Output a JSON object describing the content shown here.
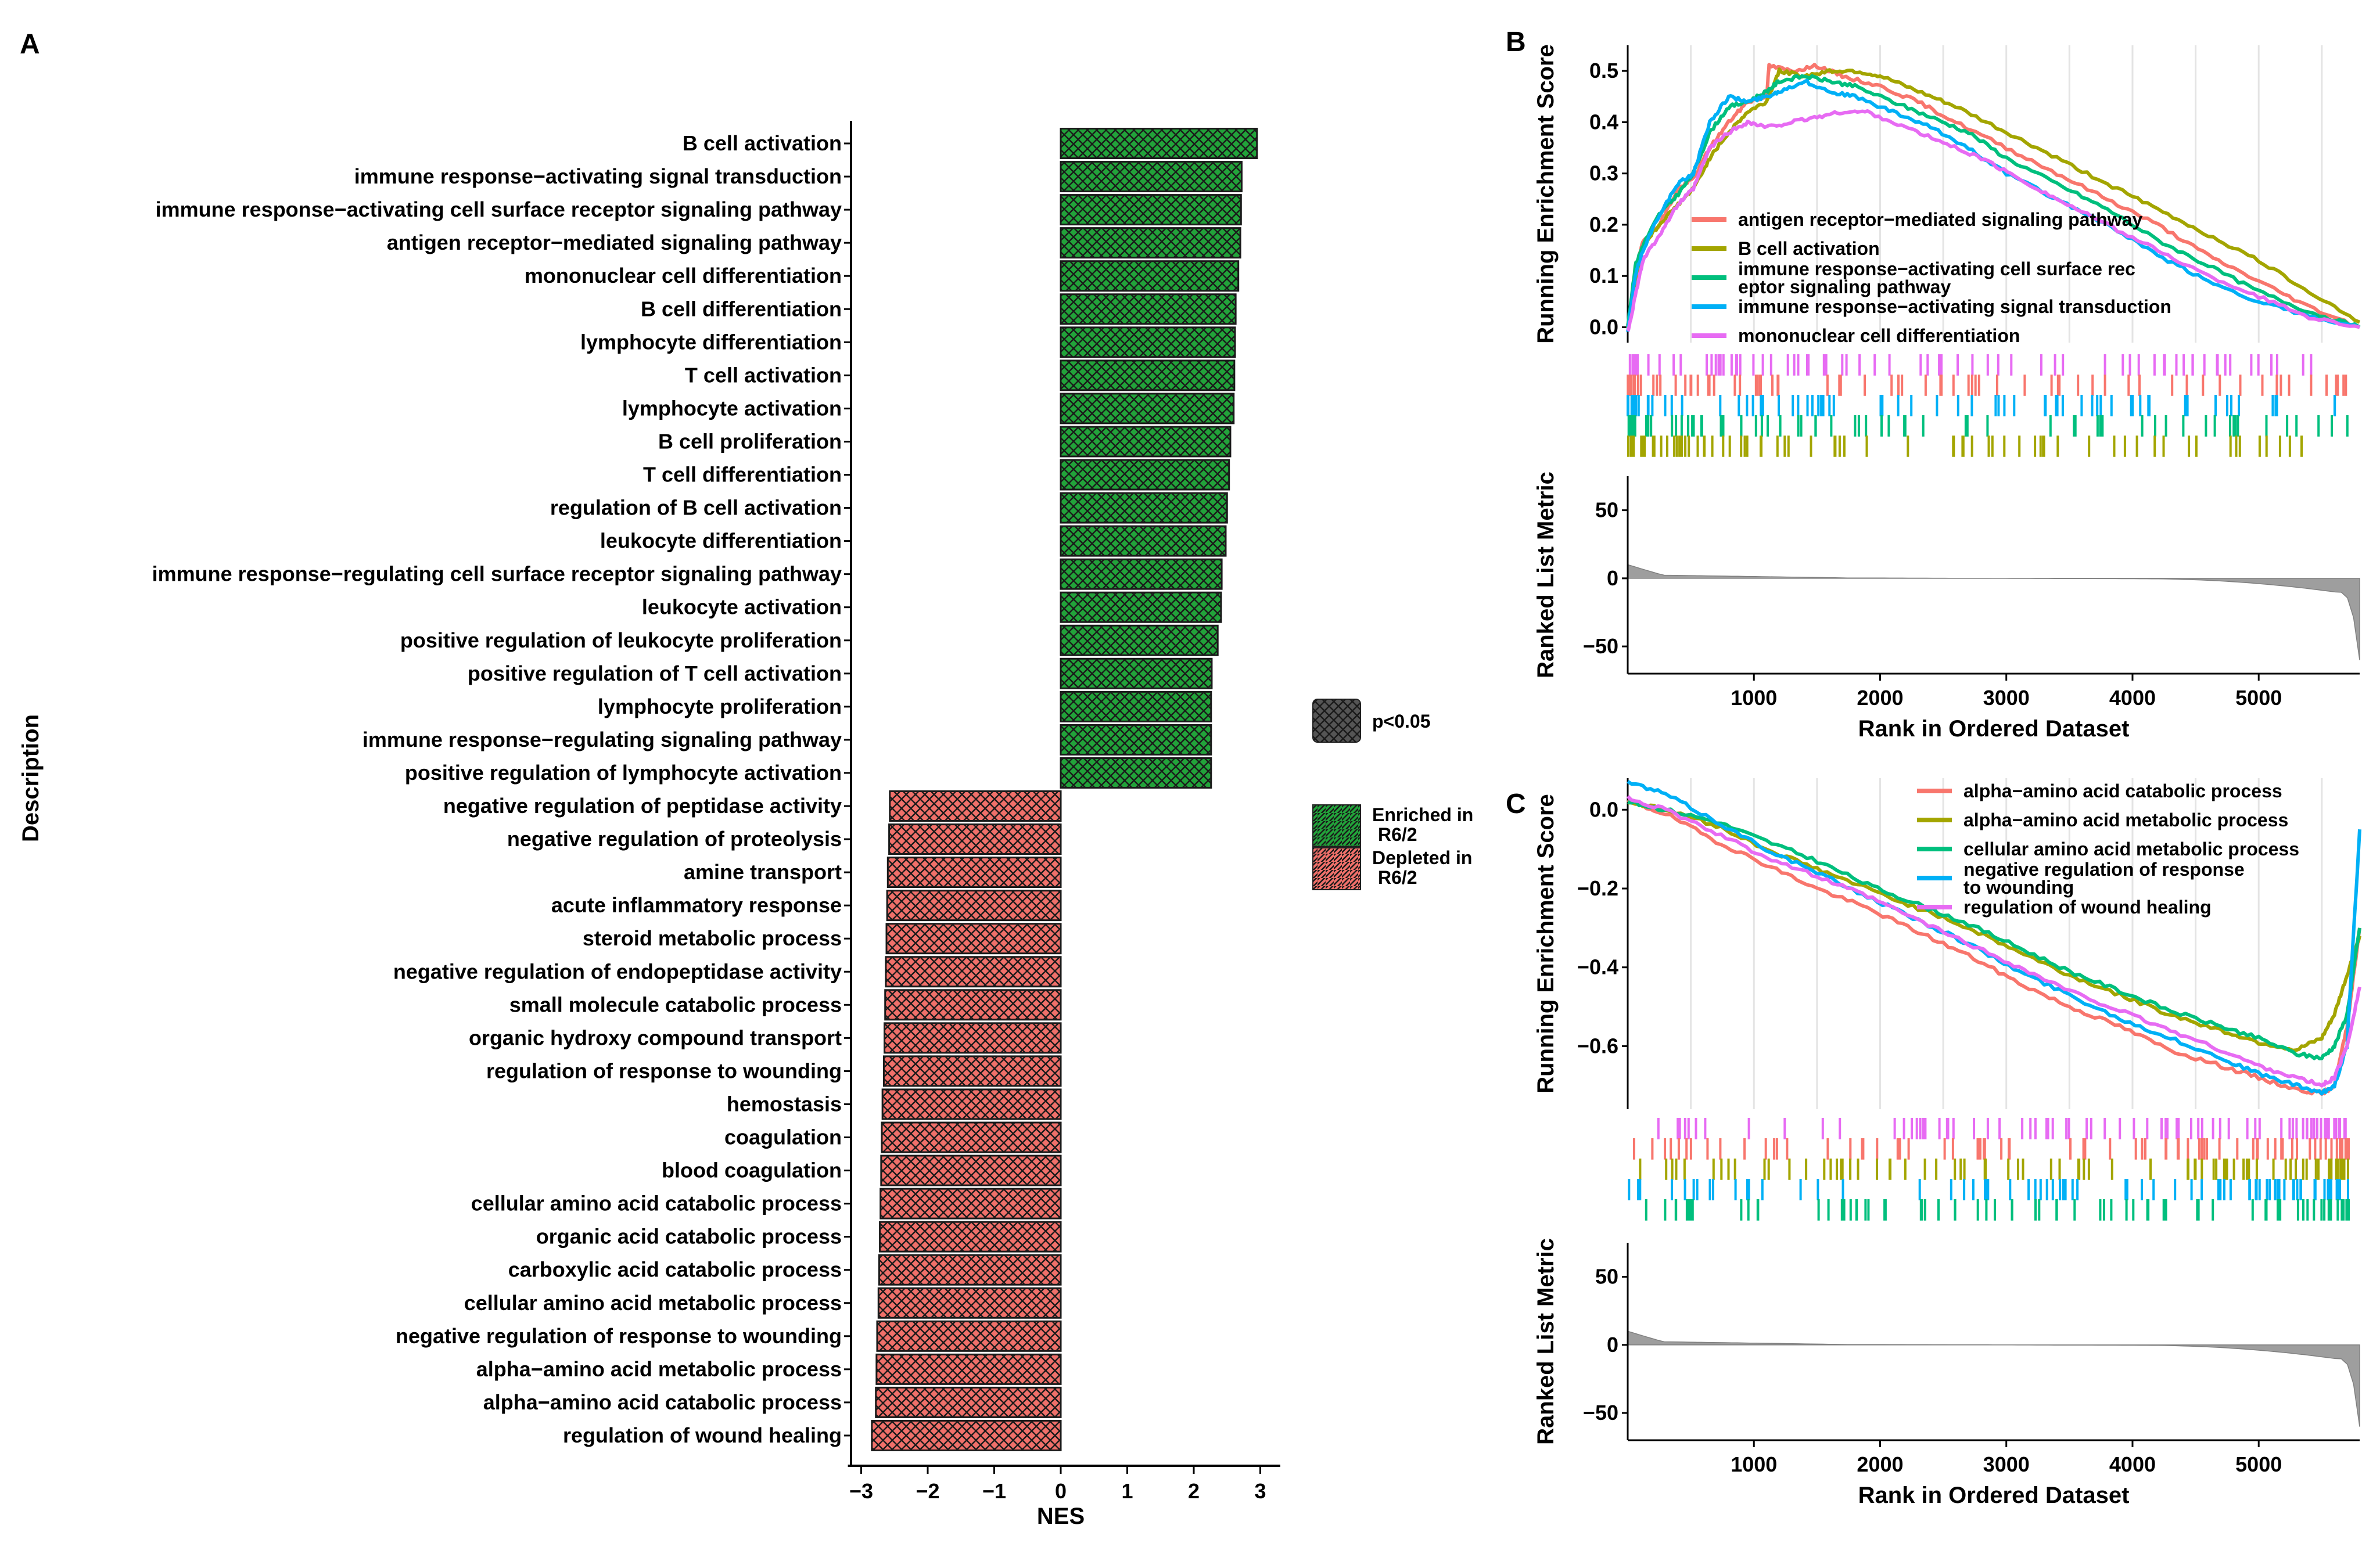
{
  "panels": {
    "a": "A",
    "b": "B",
    "c": "C"
  },
  "chart_data": [
    {
      "id": "A",
      "type": "bar",
      "orientation": "horizontal",
      "xlabel": "NES",
      "ylabel": "Description",
      "xlim": [
        -3.2,
        3.3
      ],
      "xticks": [
        "−3",
        "−2",
        "−1",
        "0",
        "1",
        "2",
        "3"
      ],
      "xtick_values": [
        -3,
        -2,
        -1,
        0,
        1,
        2,
        3
      ],
      "categories": [
        "B cell activation",
        "immune response−activating signal transduction",
        "immune response−activating cell surface receptor signaling pathway",
        "antigen receptor−mediated signaling pathway",
        "mononuclear cell differentiation",
        "B cell differentiation",
        "lymphocyte differentiation",
        "T cell activation",
        "lymphocyte activation",
        "B cell proliferation",
        "T cell differentiation",
        "regulation of B cell activation",
        "leukocyte differentiation",
        "immune response−regulating cell surface receptor signaling pathway",
        "leukocyte activation",
        "positive regulation of leukocyte proliferation",
        "positive regulation of T cell activation",
        "lymphocyte proliferation",
        "immune response−regulating signaling pathway",
        "positive regulation of lymphocyte activation",
        "negative regulation of peptidase activity",
        "negative regulation of proteolysis",
        "amine transport",
        "acute inflammatory response",
        "steroid metabolic process",
        "negative regulation of endopeptidase activity",
        "small molecule catabolic process",
        "organic hydroxy compound transport",
        "regulation of response to wounding",
        "hemostasis",
        "coagulation",
        "blood coagulation",
        "cellular amino acid catabolic process",
        "organic acid catabolic process",
        "carboxylic acid catabolic process",
        "cellular amino acid metabolic process",
        "negative regulation of response to wounding",
        "alpha−amino acid metabolic process",
        "alpha−amino acid catabolic process",
        "regulation of wound healing"
      ],
      "values": [
        2.95,
        2.72,
        2.71,
        2.7,
        2.67,
        2.63,
        2.62,
        2.61,
        2.6,
        2.55,
        2.53,
        2.5,
        2.48,
        2.42,
        2.41,
        2.36,
        2.27,
        2.26,
        2.26,
        2.26,
        -2.57,
        -2.58,
        -2.6,
        -2.61,
        -2.62,
        -2.63,
        -2.64,
        -2.65,
        -2.66,
        -2.68,
        -2.69,
        -2.7,
        -2.71,
        -2.72,
        -2.73,
        -2.74,
        -2.76,
        -2.77,
        -2.78,
        -2.84
      ],
      "legend": {
        "pattern_label": "p<0.05",
        "items": [
          {
            "label": "Enriched in R6/2",
            "color": "#22a33a"
          },
          {
            "label": "Depleted in R6/2",
            "color": "#f0706a"
          }
        ]
      }
    },
    {
      "id": "B",
      "type": "line",
      "ylabel_top": "Running Enrichment Score",
      "ylabel_bottom": "Ranked List Metric",
      "xlabel": "Rank in Ordered Dataset",
      "xlim": [
        0,
        5800
      ],
      "xticks": [
        1000,
        2000,
        3000,
        4000,
        5000
      ],
      "ylim_top": [
        -0.03,
        0.55
      ],
      "yticks_top": [
        "0.0",
        "0.1",
        "0.2",
        "0.3",
        "0.4",
        "0.5"
      ],
      "ylim_bottom": [
        -70,
        75
      ],
      "yticks_bottom": [
        "50",
        "0",
        "−50"
      ],
      "series": [
        {
          "name": "antigen receptor−mediated signaling pathway",
          "color": "#f8766d",
          "x": [
            0,
            60,
            120,
            250,
            400,
            520,
            650,
            800,
            950,
            1100,
            1120,
            1300,
            1500,
            1700,
            2000,
            2300,
            2600,
            3000,
            3400,
            3800,
            4200,
            4600,
            5000,
            5400,
            5800
          ],
          "y": [
            0.0,
            0.1,
            0.17,
            0.2,
            0.27,
            0.29,
            0.35,
            0.4,
            0.44,
            0.45,
            0.51,
            0.5,
            0.51,
            0.49,
            0.47,
            0.44,
            0.4,
            0.35,
            0.3,
            0.25,
            0.2,
            0.14,
            0.09,
            0.04,
            0.0
          ]
        },
        {
          "name": "B cell activation",
          "color": "#a3a500",
          "x": [
            0,
            60,
            120,
            250,
            400,
            520,
            650,
            800,
            950,
            1100,
            1200,
            1400,
            1600,
            1800,
            2000,
            2300,
            2600,
            3000,
            3400,
            3800,
            4200,
            4600,
            5000,
            5400,
            5800
          ],
          "y": [
            0.0,
            0.09,
            0.16,
            0.2,
            0.24,
            0.27,
            0.33,
            0.38,
            0.42,
            0.44,
            0.5,
            0.49,
            0.5,
            0.5,
            0.49,
            0.46,
            0.43,
            0.38,
            0.33,
            0.28,
            0.23,
            0.18,
            0.13,
            0.07,
            0.01
          ]
        },
        {
          "name": "immune response−activating cell surface receptor signaling pathway",
          "color": "#00bf7d",
          "x": [
            0,
            60,
            120,
            250,
            400,
            520,
            650,
            800,
            950,
            1100,
            1200,
            1400,
            1600,
            1800,
            2100,
            2400,
            2700,
            3000,
            3400,
            3800,
            4200,
            4600,
            5000,
            5400,
            5800
          ],
          "y": [
            0.0,
            0.12,
            0.16,
            0.22,
            0.26,
            0.3,
            0.38,
            0.43,
            0.44,
            0.46,
            0.48,
            0.49,
            0.48,
            0.47,
            0.44,
            0.41,
            0.38,
            0.33,
            0.28,
            0.23,
            0.17,
            0.12,
            0.07,
            0.03,
            0.0
          ]
        },
        {
          "name": "immune response−activating signal transduction",
          "color": "#00b0f6",
          "x": [
            0,
            60,
            120,
            250,
            400,
            520,
            650,
            800,
            950,
            1100,
            1200,
            1400,
            1600,
            1800,
            2100,
            2400,
            2700,
            3000,
            3400,
            3800,
            4200,
            4600,
            5000,
            5400,
            5800
          ],
          "y": [
            -0.01,
            0.1,
            0.15,
            0.22,
            0.28,
            0.3,
            0.4,
            0.45,
            0.44,
            0.45,
            0.46,
            0.48,
            0.46,
            0.45,
            0.42,
            0.39,
            0.35,
            0.3,
            0.25,
            0.2,
            0.14,
            0.09,
            0.05,
            0.02,
            0.0
          ]
        },
        {
          "name": "mononuclear cell differentiation",
          "color": "#e76bf3",
          "x": [
            0,
            60,
            120,
            250,
            400,
            520,
            650,
            800,
            950,
            1100,
            1300,
            1500,
            1700,
            1900,
            2200,
            2500,
            2800,
            3100,
            3400,
            3800,
            4200,
            4600,
            5000,
            5400,
            5800
          ],
          "y": [
            -0.01,
            0.06,
            0.13,
            0.18,
            0.24,
            0.27,
            0.35,
            0.38,
            0.4,
            0.39,
            0.4,
            0.41,
            0.42,
            0.42,
            0.39,
            0.36,
            0.33,
            0.29,
            0.25,
            0.2,
            0.15,
            0.1,
            0.06,
            0.02,
            0.0
          ]
        }
      ]
    },
    {
      "id": "C",
      "type": "line",
      "ylabel_top": "Running Enrichment Score",
      "ylabel_bottom": "Ranked List Metric",
      "xlabel": "Rank in Ordered Dataset",
      "xlim": [
        0,
        5800
      ],
      "xticks": [
        1000,
        2000,
        3000,
        4000,
        5000
      ],
      "ylim_top": [
        -0.76,
        0.08
      ],
      "yticks_top": [
        "0.0",
        "−0.2",
        "−0.4",
        "−0.6"
      ],
      "ylim_bottom": [
        -70,
        75
      ],
      "yticks_bottom": [
        "50",
        "0",
        "−50"
      ],
      "series": [
        {
          "name": "alpha−amino acid catabolic process",
          "color": "#f8766d",
          "x": [
            0,
            300,
            700,
            1100,
            1500,
            1900,
            2300,
            2700,
            3100,
            3500,
            3900,
            4300,
            4700,
            5000,
            5300,
            5500,
            5600,
            5700,
            5800
          ],
          "y": [
            0.02,
            -0.01,
            -0.08,
            -0.14,
            -0.2,
            -0.25,
            -0.31,
            -0.37,
            -0.44,
            -0.5,
            -0.55,
            -0.61,
            -0.65,
            -0.68,
            -0.71,
            -0.72,
            -0.7,
            -0.55,
            -0.3
          ]
        },
        {
          "name": "alpha−amino acid metabolic process",
          "color": "#a3a500",
          "x": [
            0,
            300,
            700,
            1100,
            1500,
            1900,
            2300,
            2700,
            3100,
            3500,
            3900,
            4300,
            4700,
            5000,
            5300,
            5500,
            5600,
            5700,
            5800
          ],
          "y": [
            0.02,
            0.0,
            -0.04,
            -0.1,
            -0.15,
            -0.2,
            -0.25,
            -0.3,
            -0.36,
            -0.42,
            -0.47,
            -0.52,
            -0.56,
            -0.59,
            -0.61,
            -0.58,
            -0.52,
            -0.42,
            -0.32
          ]
        },
        {
          "name": "cellular amino acid metabolic process",
          "color": "#00bf7d",
          "x": [
            0,
            300,
            700,
            1100,
            1500,
            1900,
            2300,
            2700,
            3100,
            3500,
            3900,
            4300,
            4700,
            5000,
            5300,
            5500,
            5600,
            5700,
            5800
          ],
          "y": [
            0.02,
            0.0,
            -0.03,
            -0.08,
            -0.13,
            -0.19,
            -0.24,
            -0.29,
            -0.35,
            -0.41,
            -0.46,
            -0.51,
            -0.55,
            -0.58,
            -0.62,
            -0.63,
            -0.6,
            -0.52,
            -0.3
          ]
        },
        {
          "name": "negative regulation of response to wounding",
          "color": "#00b0f6",
          "x": [
            0,
            300,
            700,
            1100,
            1500,
            1900,
            2300,
            2700,
            3100,
            3500,
            3900,
            4300,
            4700,
            5000,
            5300,
            5500,
            5600,
            5700,
            5800
          ],
          "y": [
            0.07,
            0.04,
            -0.03,
            -0.1,
            -0.16,
            -0.22,
            -0.28,
            -0.34,
            -0.41,
            -0.47,
            -0.53,
            -0.58,
            -0.63,
            -0.67,
            -0.7,
            -0.72,
            -0.7,
            -0.6,
            -0.05
          ]
        },
        {
          "name": "regulation of wound healing",
          "color": "#e76bf3",
          "x": [
            0,
            300,
            700,
            1100,
            1500,
            1900,
            2300,
            2700,
            3100,
            3500,
            3900,
            4300,
            4700,
            5000,
            5300,
            5500,
            5600,
            5700,
            5800
          ],
          "y": [
            0.03,
            0.0,
            -0.06,
            -0.12,
            -0.17,
            -0.22,
            -0.28,
            -0.34,
            -0.4,
            -0.46,
            -0.51,
            -0.56,
            -0.61,
            -0.65,
            -0.68,
            -0.7,
            -0.68,
            -0.6,
            -0.45
          ]
        }
      ]
    }
  ]
}
